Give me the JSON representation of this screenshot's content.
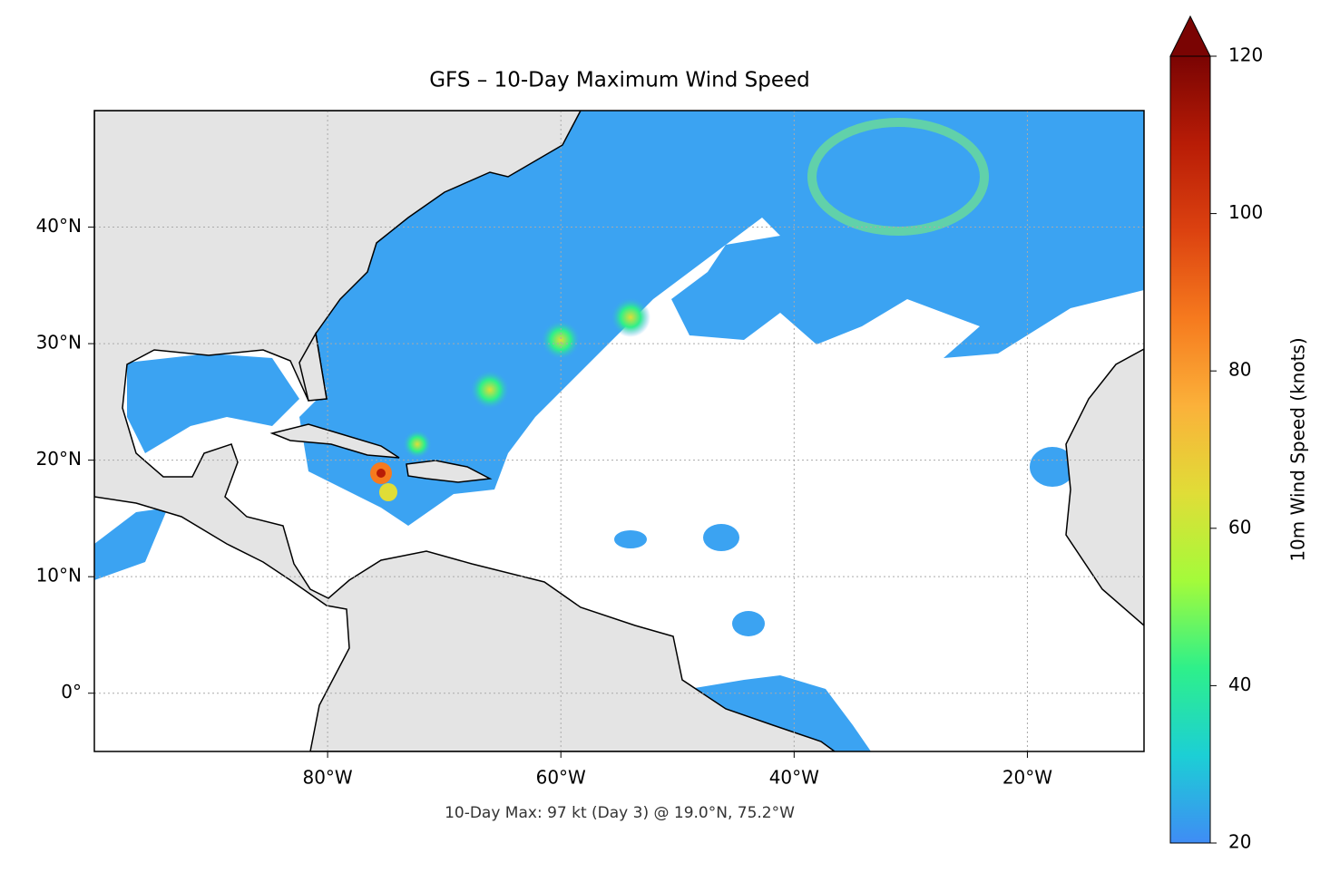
{
  "chart_data": {
    "type": "map",
    "title": "GFS – 10-Day Maximum Wind Speed",
    "annotation": "10-Day Max: 97 kt (Day 3) @ 19.0°N, 75.2°W",
    "xlim": [
      -100,
      -10
    ],
    "ylim": [
      -5,
      50
    ],
    "xticks": [
      {
        "value": -80,
        "label": "80°W"
      },
      {
        "value": -60,
        "label": "60°W"
      },
      {
        "value": -40,
        "label": "40°W"
      },
      {
        "value": -20,
        "label": "20°W"
      }
    ],
    "yticks": [
      {
        "value": 0,
        "label": "0°"
      },
      {
        "value": 10,
        "label": "10°N"
      },
      {
        "value": 20,
        "label": "20°N"
      },
      {
        "value": 30,
        "label": "30°N"
      },
      {
        "value": 40,
        "label": "40°N"
      }
    ],
    "grid": true,
    "colorbar": {
      "label": "10m Wind Speed (knots)",
      "lim": [
        20,
        120
      ],
      "ticks": [
        20,
        40,
        60,
        80,
        100,
        120
      ],
      "extend": "max",
      "colors": [
        "#3f8cf5",
        "#1ccfd5",
        "#2ef08a",
        "#a4fb3a",
        "#e0dd37",
        "#fbb13a",
        "#f67a1e",
        "#dc4210",
        "#b81c06",
        "#7a0403"
      ]
    }
  }
}
